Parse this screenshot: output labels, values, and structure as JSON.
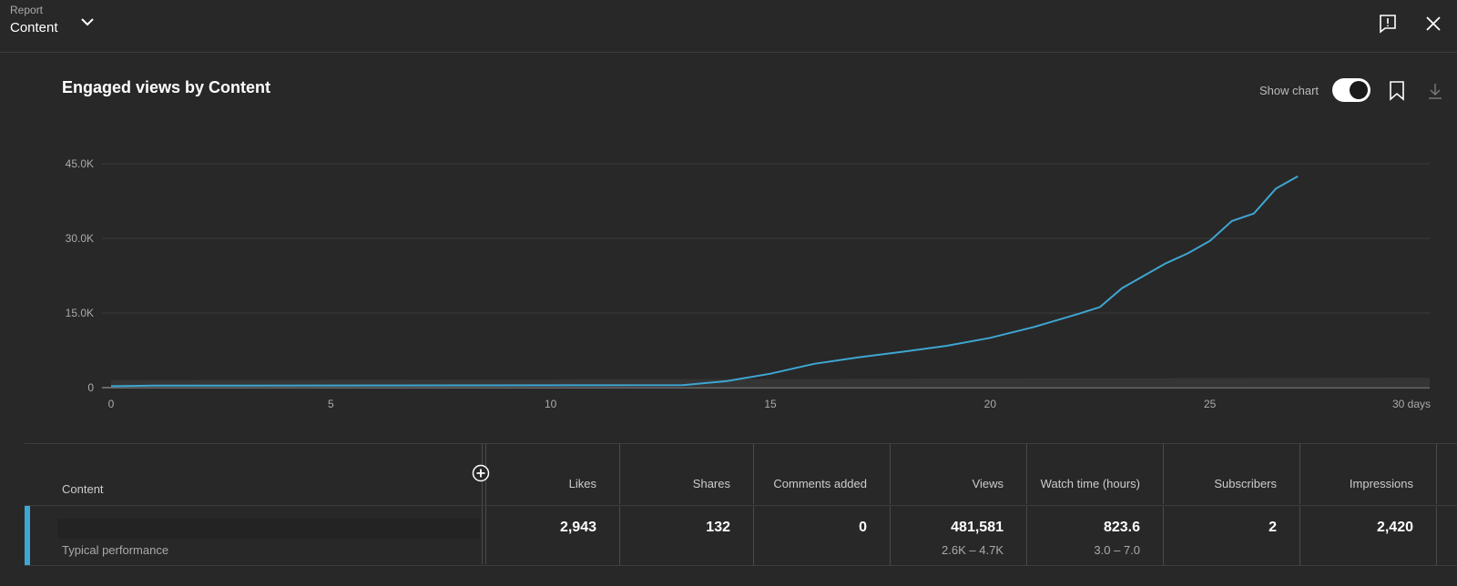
{
  "header": {
    "report_label": "Report",
    "report_value": "Content"
  },
  "panel": {
    "title": "Engaged views by Content",
    "show_chart_label": "Show chart",
    "show_chart_on": true
  },
  "colors": {
    "line": "#3ea6d2",
    "background": "#282828",
    "band": "#3a3a3a"
  },
  "chart_data": {
    "type": "line",
    "title": "Engaged views by Content",
    "xlabel": "",
    "ylabel": "",
    "x_ticks": [
      "0",
      "5",
      "10",
      "15",
      "20",
      "25",
      "30 days"
    ],
    "y_ticks": [
      "0",
      "15.0K",
      "30.0K",
      "45.0K"
    ],
    "xlim": [
      0,
      30
    ],
    "ylim": [
      0,
      45000
    ],
    "grid": true,
    "series": [
      {
        "x": [
          0,
          1,
          13,
          14,
          15,
          16,
          17,
          18,
          19,
          20,
          21,
          22,
          22.5,
          23,
          24,
          24.5,
          25,
          25.5,
          26,
          26.3,
          26.5,
          27
        ],
        "values": [
          300,
          400,
          500,
          1300,
          2800,
          4800,
          6100,
          7200,
          8400,
          10000,
          12200,
          14800,
          16200,
          20000,
          25000,
          27000,
          29500,
          33500,
          35000,
          38000,
          40000,
          42500
        ]
      }
    ],
    "typical_band": {
      "x": [
        0,
        30
      ],
      "low": [
        0,
        0
      ],
      "high": [
        1500,
        2000
      ]
    }
  },
  "table": {
    "content_header": "Content",
    "columns": [
      {
        "label": "Likes",
        "value": "2,943",
        "sub": ""
      },
      {
        "label": "Shares",
        "value": "132",
        "sub": ""
      },
      {
        "label": "Comments added",
        "value": "0",
        "sub": ""
      },
      {
        "label": "Views",
        "value": "481,581",
        "sub": "2.6K – 4.7K"
      },
      {
        "label": "Watch time (hours)",
        "value": "823.6",
        "sub": "3.0 – 7.0"
      },
      {
        "label": "Subscribers",
        "value": "2",
        "sub": ""
      },
      {
        "label": "Impressions",
        "value": "2,420",
        "sub": ""
      }
    ],
    "row_label": "Typical performance"
  }
}
